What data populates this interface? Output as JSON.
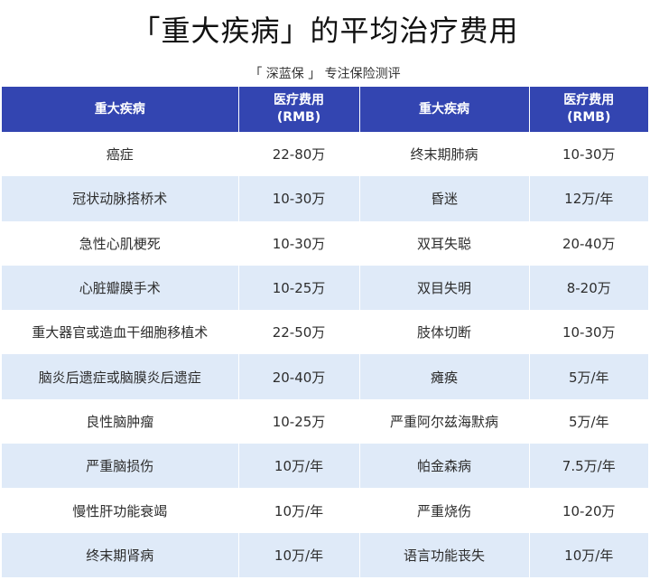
{
  "title": "「重大疾病」的平均治疗费用",
  "subtitle": "「 深蓝保 」 专注保险测评",
  "header": {
    "col1": "重大疾病",
    "col2_line1": "医疗费用",
    "col2_line2": "(RMB)",
    "col3": "重大疾病",
    "col4_line1": "医疗费用",
    "col4_line2": "(RMB)"
  },
  "rows": [
    {
      "d1": "癌症",
      "c1": "22-80万",
      "d2": "终末期肺病",
      "c2": "10-30万"
    },
    {
      "d1": "冠状动脉搭桥术",
      "c1": "10-30万",
      "d2": "昏迷",
      "c2": "12万/年"
    },
    {
      "d1": "急性心肌梗死",
      "c1": "10-30万",
      "d2": "双耳失聪",
      "c2": "20-40万"
    },
    {
      "d1": "心脏瓣膜手术",
      "c1": "10-25万",
      "d2": "双目失明",
      "c2": "8-20万"
    },
    {
      "d1": "重大器官或造血干细胞移植术",
      "c1": "22-50万",
      "d2": "肢体切断",
      "c2": "10-30万"
    },
    {
      "d1": "脑炎后遗症或脑膜炎后遗症",
      "c1": "20-40万",
      "d2": "瘫痪",
      "c2": "5万/年"
    },
    {
      "d1": "良性脑肿瘤",
      "c1": "10-25万",
      "d2": "严重阿尔兹海默病",
      "c2": "5万/年"
    },
    {
      "d1": "严重脑损伤",
      "c1": "10万/年",
      "d2": "帕金森病",
      "c2": "7.5万/年"
    },
    {
      "d1": "慢性肝功能衰竭",
      "c1": "10万/年",
      "d2": "严重烧伤",
      "c2": "10-20万"
    },
    {
      "d1": "终末期肾病",
      "c1": "10万/年",
      "d2": "语言功能丧失",
      "c2": "10万/年"
    }
  ],
  "colors": {
    "header_bg": "#3345b1",
    "stripe_bg": "#dfeaf8"
  }
}
